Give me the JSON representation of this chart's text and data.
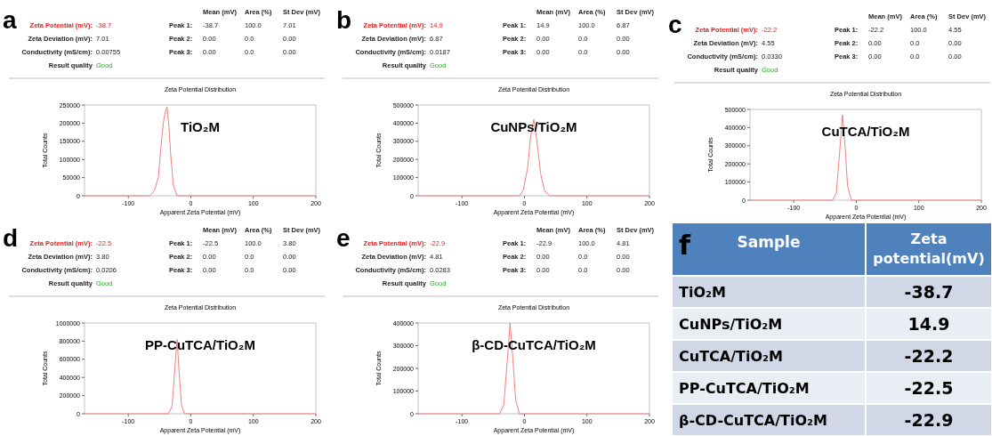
{
  "chart_data": [
    {
      "type": "line",
      "title": "Zeta Potential Distribution",
      "xlabel": "Apparent Zeta Potential (mV)",
      "ylabel": "Total Counts",
      "xlim": [
        -170,
        200
      ],
      "xticks": [
        -100,
        0,
        100,
        200
      ],
      "ylim": [
        0,
        250000
      ],
      "yticks": [
        0,
        50000,
        100000,
        150000,
        200000,
        250000
      ],
      "annotations": [
        "a",
        "TiO₂M",
        "Mean (mV)",
        "Area (%)",
        "St Dev (mV)",
        "Zeta Potential (mV):",
        "-38.7",
        "Peak 1:",
        "-38.7",
        "100.0",
        "7.01",
        "Zeta Deviation (mV):",
        "7.01",
        "Peak 2:",
        "0.00",
        "0.0",
        "0.00",
        "Conductivity (mS/cm):",
        "0.00755",
        "Peak 3:",
        "0.00",
        "0.0",
        "0.00",
        "Result quality",
        "Good"
      ],
      "series": [
        {
          "color": "#f08080",
          "x": [
            -170,
            -65,
            -58,
            -52,
            -48,
            -44,
            -41,
            -38,
            -35,
            -32,
            -28,
            -22,
            200
          ],
          "values": [
            0,
            0,
            15000,
            50000,
            130000,
            200000,
            230000,
            245000,
            190000,
            110000,
            30000,
            0,
            0
          ]
        }
      ]
    },
    {
      "type": "line",
      "title": "Zeta Potential Distribution",
      "xlabel": "Apparent Zeta Potential (mV)",
      "ylabel": "Total Counts",
      "xlim": [
        -170,
        200
      ],
      "xticks": [
        -100,
        0,
        100,
        200
      ],
      "ylim": [
        0,
        500000
      ],
      "yticks": [
        0,
        100000,
        200000,
        300000,
        400000,
        500000
      ],
      "annotations": [
        "b",
        "CuNPs/TiO₂M",
        "Mean (mV)",
        "Area (%)",
        "St Dev (mV)",
        "Zeta Potential (mV):",
        "14.9",
        "Peak 1:",
        "14.9",
        "100.0",
        "6.87",
        "Zeta Deviation (mV):",
        "6.87",
        "Peak 2:",
        "0.00",
        "0.0",
        "0.00",
        "Conductivity (mS/cm):",
        "0.0187",
        "Peak 3:",
        "0.00",
        "0.0",
        "0.00",
        "Result quality",
        "Good"
      ],
      "series": [
        {
          "color": "#f08080",
          "x": [
            -170,
            -8,
            -2,
            5,
            10,
            15,
            20,
            26,
            32,
            40,
            200
          ],
          "values": [
            0,
            0,
            30000,
            150000,
            330000,
            420000,
            300000,
            120000,
            30000,
            0,
            0
          ]
        }
      ]
    },
    {
      "type": "line",
      "title": "Zeta Potential Distribution",
      "xlabel": "Apparent Zeta Potential (mV)",
      "ylabel": "Total Counts",
      "xlim": [
        -170,
        200
      ],
      "xticks": [
        -100,
        0,
        100,
        200
      ],
      "ylim": [
        0,
        500000
      ],
      "yticks": [
        0,
        100000,
        200000,
        300000,
        400000,
        500000
      ],
      "annotations": [
        "c",
        "CuTCA/TiO₂M",
        "Mean (mV)",
        "Area (%)",
        "St Dev (mV)",
        "Zeta Potential (mV):",
        "-22.2",
        "Peak 1:",
        "-22.2",
        "100.0",
        "4.55",
        "Zeta Deviation (mV):",
        "4.55",
        "Peak 2:",
        "0.00",
        "0.0",
        "0.00",
        "Conductivity (mS/cm):",
        "0.0330",
        "Peak 3:",
        "0.00",
        "0.0",
        "0.00",
        "Result quality",
        "Good"
      ],
      "series": [
        {
          "color": "#f08080",
          "x": [
            -170,
            -38,
            -32,
            -27,
            -22,
            -18,
            -14,
            -8,
            200
          ],
          "values": [
            0,
            0,
            40000,
            250000,
            470000,
            300000,
            80000,
            0,
            0
          ]
        }
      ]
    },
    {
      "type": "line",
      "title": "Zeta Potential Distribution",
      "xlabel": "Apparent Zeta Potential (mV)",
      "ylabel": "Total Counts",
      "xlim": [
        -170,
        200
      ],
      "xticks": [
        -100,
        0,
        100,
        200
      ],
      "ylim": [
        0,
        1000000
      ],
      "yticks": [
        0,
        200000,
        400000,
        600000,
        800000,
        1000000
      ],
      "annotations": [
        "d",
        "PP-CuTCA/TiO₂M",
        "Mean (mV)",
        "Area (%)",
        "St Dev (mV)",
        "Zeta Potential (mV):",
        "-22.5",
        "Peak 1:",
        "-22.5",
        "100.0",
        "3.80",
        "Zeta Deviation (mV):",
        "3.80",
        "Peak 2:",
        "0.00",
        "0.0",
        "0.00",
        "Conductivity (mS/cm):",
        "0.0206",
        "Peak 3:",
        "0.00",
        "0.0",
        "0.00",
        "Result quality",
        "Good"
      ],
      "series": [
        {
          "color": "#f08080",
          "x": [
            -170,
            -36,
            -30,
            -26,
            -22,
            -19,
            -15,
            -10,
            200
          ],
          "values": [
            0,
            0,
            80000,
            450000,
            820000,
            500000,
            100000,
            0,
            0
          ]
        }
      ]
    },
    {
      "type": "line",
      "title": "Zeta Potential Distribution",
      "xlabel": "Apparent Zeta Potential (mV)",
      "ylabel": "Total Counts",
      "xlim": [
        -170,
        200
      ],
      "xticks": [
        -100,
        0,
        100,
        200
      ],
      "ylim": [
        0,
        400000
      ],
      "yticks": [
        0,
        100000,
        200000,
        300000,
        400000
      ],
      "annotations": [
        "e",
        "β-CD-CuTCA/TiO₂M",
        "Mean (mV)",
        "Area (%)",
        "St Dev (mV)",
        "Zeta Potential (mV):",
        "-22.9",
        "Peak 1:",
        "-22.9",
        "100.0",
        "4.81",
        "Zeta Deviation (mV):",
        "4.81",
        "Peak 2:",
        "0.00",
        "0.0",
        "0.00",
        "Conductivity (mS/cm):",
        "0.0283",
        "Peak 3:",
        "0.00",
        "0.0",
        "0.00",
        "Result quality",
        "Good"
      ],
      "series": [
        {
          "color": "#f08080",
          "x": [
            -170,
            -40,
            -33,
            -27,
            -23,
            -19,
            -14,
            -8,
            200
          ],
          "values": [
            0,
            0,
            40000,
            250000,
            400000,
            260000,
            60000,
            0,
            0
          ]
        }
      ]
    },
    {
      "type": "other",
      "annotations": [
        "f",
        "Sample",
        "Zeta potential(mV)",
        "TiO₂M",
        "-38.7",
        "CuNPs/TiO₂M",
        "14.9",
        "CuTCA/TiO₂M",
        "-22.2",
        "PP-CuTCA/TiO₂M",
        "-22.5",
        "β-CD-CuTCA/TiO₂M",
        "-22.9"
      ]
    }
  ]
}
